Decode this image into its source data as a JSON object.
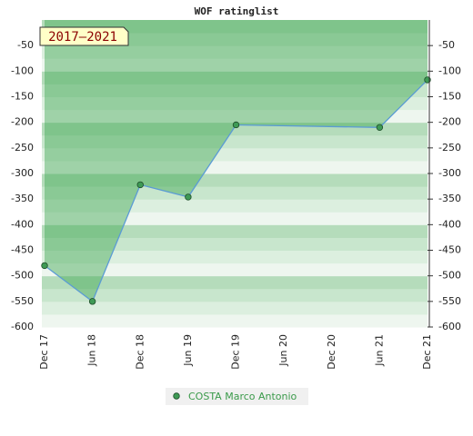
{
  "chart_data": {
    "type": "line",
    "title": "WOF ratinglist",
    "period_label": "2017–2021",
    "categories": [
      "Dec 17",
      "Jun 18",
      "Dec 18",
      "Jun 19",
      "Dec 19",
      "Jun 20",
      "Dec 20",
      "Jun 21",
      "Dec 21"
    ],
    "ylim": [
      -600,
      0
    ],
    "yticks": [
      -50,
      -100,
      -150,
      -200,
      -250,
      -300,
      -350,
      -400,
      -450,
      -500,
      -550,
      -600
    ],
    "series": [
      {
        "name": "COSTA Marco Antonio",
        "color": "#5b9bd5",
        "marker_color": "#3e9a55",
        "x": [
          "Dec 17",
          "Jun 18",
          "Dec 18",
          "Jun 19",
          "Dec 19",
          "Jun 21",
          "Dec 21"
        ],
        "values": [
          -480,
          -550,
          -322,
          -346,
          -205,
          -210,
          -117
        ]
      }
    ]
  }
}
